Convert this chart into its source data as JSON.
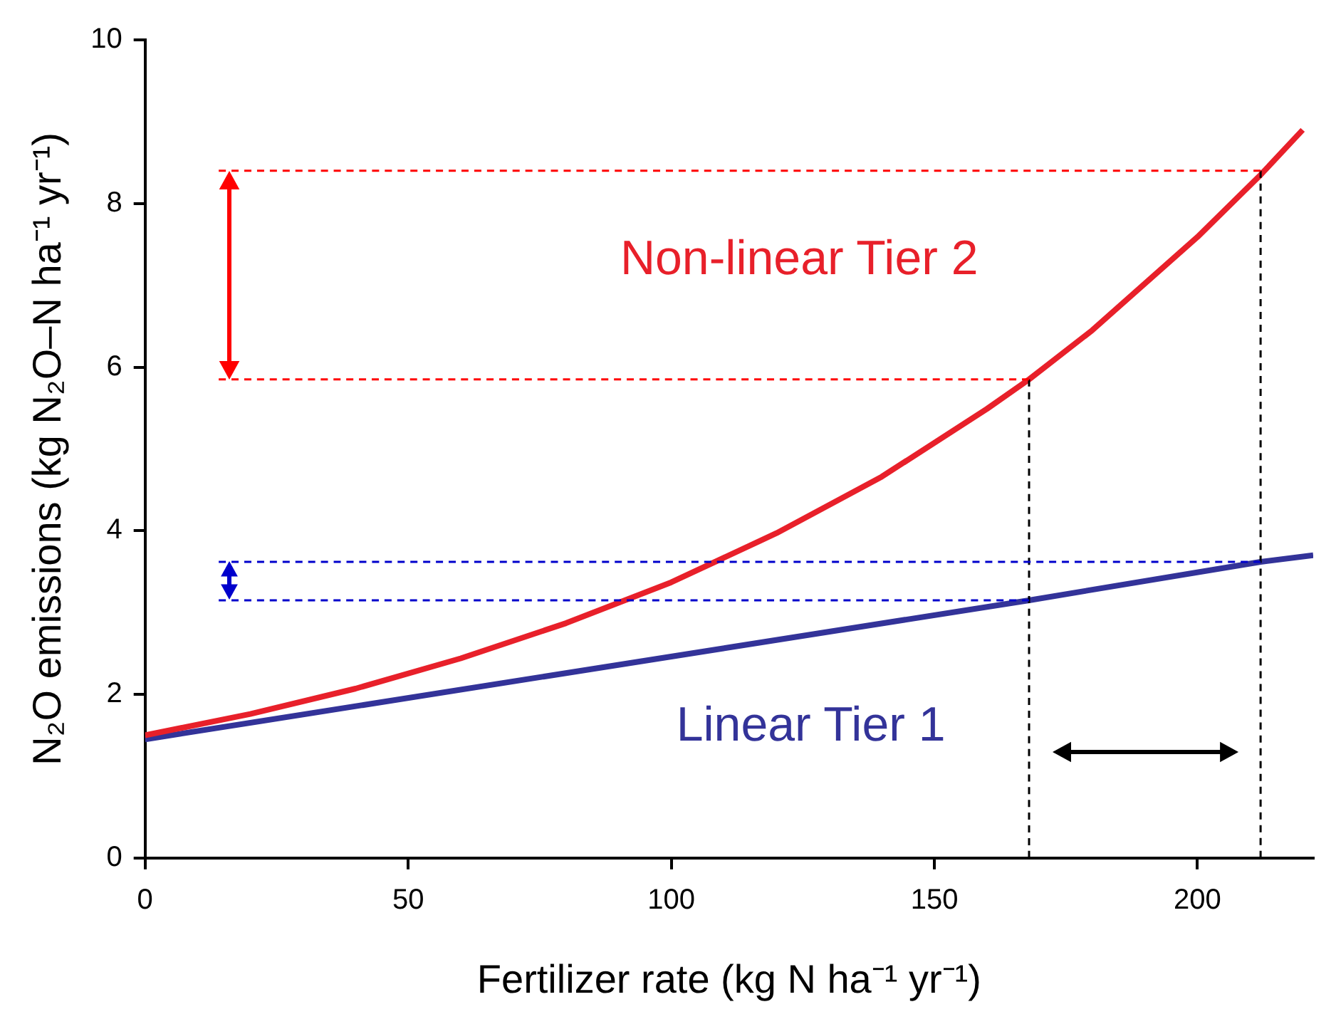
{
  "chart_data": {
    "type": "line",
    "xlabel": "Fertilizer rate (kg N ha⁻¹ yr⁻¹)",
    "ylabel": "N₂O emissions (kg N₂O–N ha⁻¹ yr⁻¹)",
    "xlim": [
      0,
      222
    ],
    "xticks": [
      0,
      50,
      100,
      150,
      200
    ],
    "ylim": [
      0,
      10
    ],
    "yticks": [
      0,
      2,
      4,
      6,
      8,
      10
    ],
    "grid": false,
    "legend": false,
    "marker": "none",
    "series": [
      {
        "name": "Non-linear Tier 2",
        "color": "#e8202a",
        "line_style": "solid",
        "x": [
          0,
          20,
          40,
          60,
          80,
          100,
          120,
          140,
          160,
          168,
          180,
          200,
          212,
          220
        ],
        "values": [
          1.5,
          1.76,
          2.07,
          2.44,
          2.87,
          3.37,
          3.97,
          4.66,
          5.49,
          5.85,
          6.45,
          7.59,
          8.35,
          8.9
        ]
      },
      {
        "name": "Linear Tier 1",
        "color": "#333399",
        "line_style": "solid",
        "x": [
          0,
          168,
          212,
          222
        ],
        "values": [
          1.45,
          3.15,
          3.62,
          3.7
        ]
      },
      {
        "color": "#ff0000",
        "line_style": "dashed",
        "x": [
          14,
          212
        ],
        "values": [
          8.4,
          8.4
        ]
      },
      {
        "color": "#ff0000",
        "line_style": "dashed",
        "x": [
          14,
          168
        ],
        "values": [
          5.85,
          5.85
        ]
      },
      {
        "color": "#0000cc",
        "line_style": "dashed",
        "x": [
          14,
          212
        ],
        "values": [
          3.62,
          3.62
        ]
      },
      {
        "color": "#0000cc",
        "line_style": "dashed",
        "x": [
          14,
          168
        ],
        "values": [
          3.15,
          3.15
        ]
      },
      {
        "color": "#000000",
        "line_style": "dashed",
        "x": [
          168,
          168
        ],
        "values": [
          0,
          5.85
        ]
      },
      {
        "color": "#000000",
        "line_style": "dashed",
        "x": [
          212,
          212
        ],
        "values": [
          0,
          8.4
        ]
      }
    ]
  }
}
